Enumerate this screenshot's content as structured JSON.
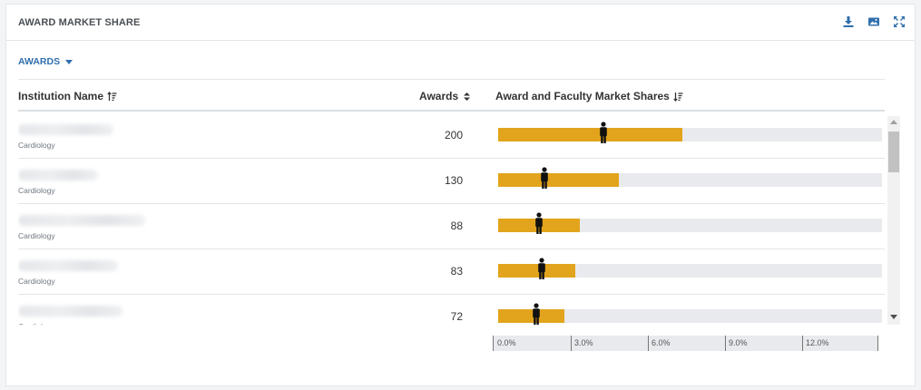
{
  "header": {
    "title": "AWARD MARKET SHARE",
    "icons": [
      "download-icon",
      "image-icon",
      "expand-icon"
    ],
    "icon_color": "#2f6fad"
  },
  "dropdown": {
    "label": "AWARDS"
  },
  "table": {
    "columns": [
      "Institution Name",
      "Awards",
      "Award and Faculty Market Shares"
    ],
    "rows": [
      {
        "department": "Cardiology",
        "awards": "200",
        "award_share_pct": 7.2,
        "faculty_share_pct": 4.1
      },
      {
        "department": "Cardiology",
        "awards": "130",
        "award_share_pct": 4.7,
        "faculty_share_pct": 1.8
      },
      {
        "department": "Cardiology",
        "awards": "88",
        "award_share_pct": 3.2,
        "faculty_share_pct": 1.6
      },
      {
        "department": "Cardiology",
        "awards": "83",
        "award_share_pct": 3.0,
        "faculty_share_pct": 1.7
      },
      {
        "department": "Cardiology",
        "awards": "72",
        "award_share_pct": 2.6,
        "faculty_share_pct": 1.5
      }
    ]
  },
  "axis": {
    "ticks": [
      "0.0%",
      "3.0%",
      "6.0%",
      "9.0%",
      "12.0%"
    ],
    "max_pct": 15
  },
  "colors": {
    "bar": "#e2a41c",
    "track": "#e8eaed",
    "marker": "#111111"
  }
}
